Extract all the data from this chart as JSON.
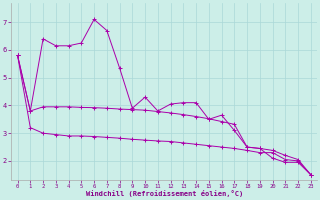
{
  "bg_color": "#cceee8",
  "grid_color": "#aad8d8",
  "line_color": "#aa00aa",
  "xlabel": "Windchill (Refroidissement éolien,°C)",
  "x_ticks": [
    0,
    1,
    2,
    3,
    4,
    5,
    6,
    7,
    8,
    9,
    10,
    11,
    12,
    13,
    14,
    15,
    16,
    17,
    18,
    19,
    20,
    21,
    22,
    23
  ],
  "y_ticks": [
    2,
    3,
    4,
    5,
    6,
    7
  ],
  "xlim": [
    -0.5,
    23.5
  ],
  "ylim": [
    1.3,
    7.7
  ],
  "lines": [
    [
      5.8,
      3.8,
      6.4,
      6.15,
      6.15,
      6.25,
      7.1,
      6.7,
      5.35,
      3.9,
      4.3,
      3.8,
      4.05,
      4.1,
      4.1,
      3.5,
      3.65,
      3.1,
      2.5,
      2.45,
      2.1,
      1.95,
      1.95,
      1.5
    ],
    [
      5.8,
      3.8,
      3.95,
      3.95,
      3.95,
      3.93,
      3.92,
      3.9,
      3.87,
      3.85,
      3.83,
      3.78,
      3.73,
      3.67,
      3.6,
      3.52,
      3.42,
      3.32,
      2.5,
      2.45,
      2.38,
      2.2,
      2.05,
      1.5
    ],
    [
      5.8,
      3.2,
      3.0,
      2.95,
      2.9,
      2.9,
      2.88,
      2.85,
      2.82,
      2.78,
      2.75,
      2.72,
      2.7,
      2.65,
      2.6,
      2.55,
      2.5,
      2.45,
      2.38,
      2.3,
      2.3,
      2.05,
      2.0,
      1.5
    ]
  ]
}
